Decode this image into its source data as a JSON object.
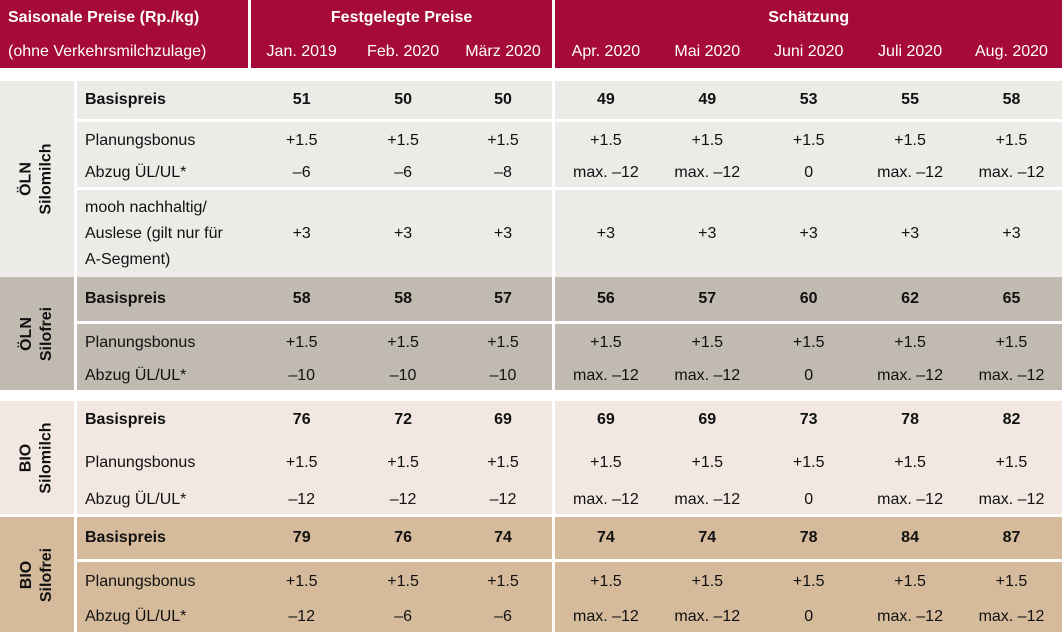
{
  "header": {
    "title": "Saisonale Preise (Rp./kg)",
    "subtitle": "(ohne Verkehrsmilchzulage)",
    "group_fixed": "Festgelegte Preise",
    "group_estimate": "Schätzung",
    "months": [
      "Jan. 2019",
      "Feb. 2020",
      "März 2020",
      "Apr. 2020",
      "Mai 2020",
      "Juni 2020",
      "Juli 2020",
      "Aug. 2020"
    ]
  },
  "groups": [
    {
      "line1": "ÖLN",
      "line2": "Silomilch",
      "rows": [
        {
          "label": "Basispreis",
          "values": [
            "51",
            "50",
            "50",
            "49",
            "49",
            "53",
            "55",
            "58"
          ]
        },
        {
          "label": "Planungsbonus",
          "values": [
            "+1.5",
            "+1.5",
            "+1.5",
            "+1.5",
            "+1.5",
            "+1.5",
            "+1.5",
            "+1.5"
          ]
        },
        {
          "label": "Abzug ÜL/UL*",
          "values": [
            "–6",
            "–6",
            "–8",
            "max. –12",
            "max. –12",
            "0",
            "max. –12",
            "max. –12"
          ]
        },
        {
          "label_lines": [
            "mooh nachhaltig/",
            "Auslese (gilt nur für",
            "A-Segment)"
          ],
          "values": [
            "+3",
            "+3",
            "+3",
            "+3",
            "+3",
            "+3",
            "+3",
            "+3"
          ]
        }
      ]
    },
    {
      "line1": "ÖLN",
      "line2": "Silofrei",
      "rows": [
        {
          "label": "Basispreis",
          "values": [
            "58",
            "58",
            "57",
            "56",
            "57",
            "60",
            "62",
            "65"
          ]
        },
        {
          "label": "Planungsbonus",
          "values": [
            "+1.5",
            "+1.5",
            "+1.5",
            "+1.5",
            "+1.5",
            "+1.5",
            "+1.5",
            "+1.5"
          ]
        },
        {
          "label": "Abzug ÜL/UL*",
          "values": [
            "–10",
            "–10",
            "–10",
            "max. –12",
            "max. –12",
            "0",
            "max. –12",
            "max. –12"
          ]
        }
      ]
    },
    {
      "line1": "BIO",
      "line2": "Silomilch",
      "rows": [
        {
          "label": "Basispreis",
          "values": [
            "76",
            "72",
            "69",
            "69",
            "69",
            "73",
            "78",
            "82"
          ]
        },
        {
          "label": "Planungsbonus",
          "values": [
            "+1.5",
            "+1.5",
            "+1.5",
            "+1.5",
            "+1.5",
            "+1.5",
            "+1.5",
            "+1.5"
          ]
        },
        {
          "label": "Abzug ÜL/UL*",
          "values": [
            "–12",
            "–12",
            "–12",
            "max. –12",
            "max. –12",
            "0",
            "max. –12",
            "max. –12"
          ]
        }
      ]
    },
    {
      "line1": "BIO",
      "line2": "Silofrei",
      "rows": [
        {
          "label": "Basispreis",
          "values": [
            "79",
            "76",
            "74",
            "74",
            "74",
            "78",
            "84",
            "87"
          ]
        },
        {
          "label": "Planungsbonus",
          "values": [
            "+1.5",
            "+1.5",
            "+1.5",
            "+1.5",
            "+1.5",
            "+1.5",
            "+1.5",
            "+1.5"
          ]
        },
        {
          "label": "Abzug ÜL/UL*",
          "values": [
            "–12",
            "–6",
            "–6",
            "max. –12",
            "max. –12",
            "0",
            "max. –12",
            "max. –12"
          ]
        }
      ]
    }
  ],
  "colors": {
    "header": "#a50a39",
    "oeln_silomilch": "#ecebe8",
    "oeln_silofrei": "#c0bab1",
    "bio_silomilch": "#f2e8e1",
    "bio_silofrei": "#d5bb9c"
  }
}
